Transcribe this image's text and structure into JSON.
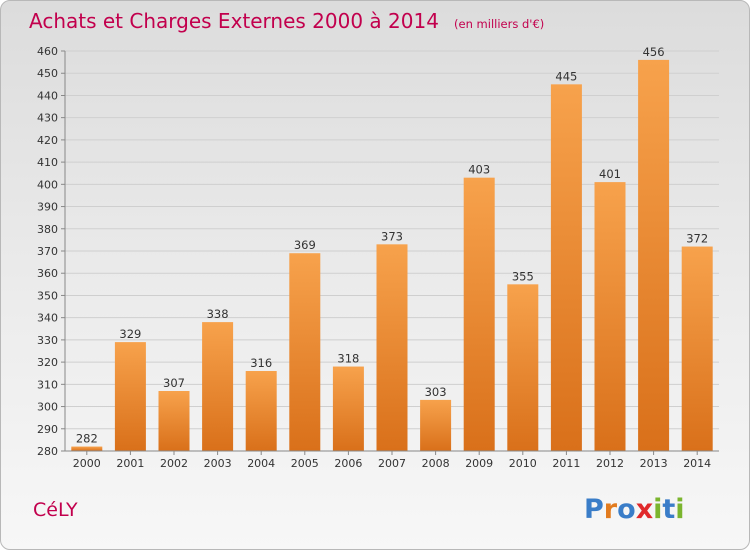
{
  "chart_data": {
    "type": "bar",
    "title": "Achats et Charges Externes 2000 à 2014",
    "subtitle": "(en milliers d'€)",
    "categories": [
      "2000",
      "2001",
      "2002",
      "2003",
      "2004",
      "2005",
      "2006",
      "2007",
      "2008",
      "2009",
      "2010",
      "2011",
      "2012",
      "2013",
      "2014"
    ],
    "values": [
      282,
      329,
      307,
      338,
      316,
      369,
      318,
      373,
      303,
      403,
      355,
      445,
      401,
      456,
      372
    ],
    "xlabel": "",
    "ylabel": "",
    "ylim": [
      280,
      460
    ],
    "yticks": [
      280,
      290,
      300,
      310,
      320,
      330,
      340,
      350,
      360,
      370,
      380,
      390,
      400,
      410,
      420,
      430,
      440,
      450,
      460
    ],
    "grid": true,
    "bar_color": "#f0913a"
  },
  "footer": {
    "commune": "CéLY",
    "logo": "Proxiti"
  },
  "colors": {
    "title": "#c2004d",
    "commune": "#c2004d",
    "logo_letters": [
      "#3a7dc8",
      "#e27b1e",
      "#3a7dc8",
      "#e0292b",
      "#7bb52e",
      "#3a7dc8",
      "#7bb52e"
    ]
  }
}
